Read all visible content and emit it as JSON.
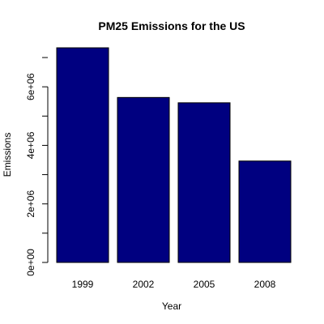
{
  "chart_data": {
    "type": "bar",
    "title": "PM25 Emissions for the US",
    "xlabel": "Year",
    "ylabel": "Emissions",
    "categories": [
      "1999",
      "2002",
      "2005",
      "2008"
    ],
    "values": [
      7332967,
      5635780,
      5454703,
      3464206
    ],
    "ylim": [
      0,
      7332967
    ],
    "yticks": [
      0,
      2000000,
      4000000,
      6000000
    ],
    "ytick_labels": [
      "0e+00",
      "2e+06",
      "4e+06",
      "6e+06"
    ],
    "bar_color": "#000080",
    "bar_border_color": "#000000",
    "grid": false,
    "legend": "none"
  }
}
